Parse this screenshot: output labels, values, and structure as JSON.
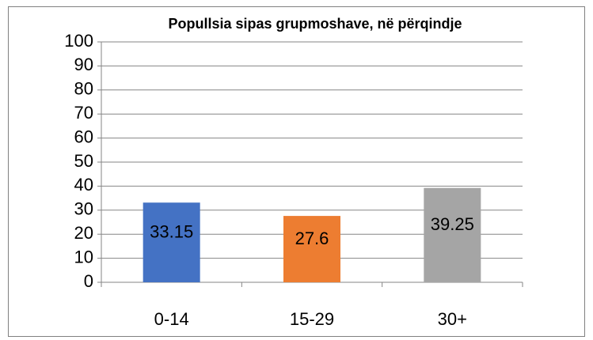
{
  "chart_data": {
    "type": "bar",
    "title": "Popullsia sipas grupmoshave, në përqindje",
    "categories": [
      "0-14",
      "15-29",
      "30+"
    ],
    "values": [
      33.15,
      27.6,
      39.25
    ],
    "colors": [
      "#4472c4",
      "#ed7d31",
      "#a5a5a5"
    ],
    "ylim": [
      0,
      100
    ],
    "yticks": [
      0,
      10,
      20,
      30,
      40,
      50,
      60,
      70,
      80,
      90,
      100
    ],
    "grid": true
  }
}
